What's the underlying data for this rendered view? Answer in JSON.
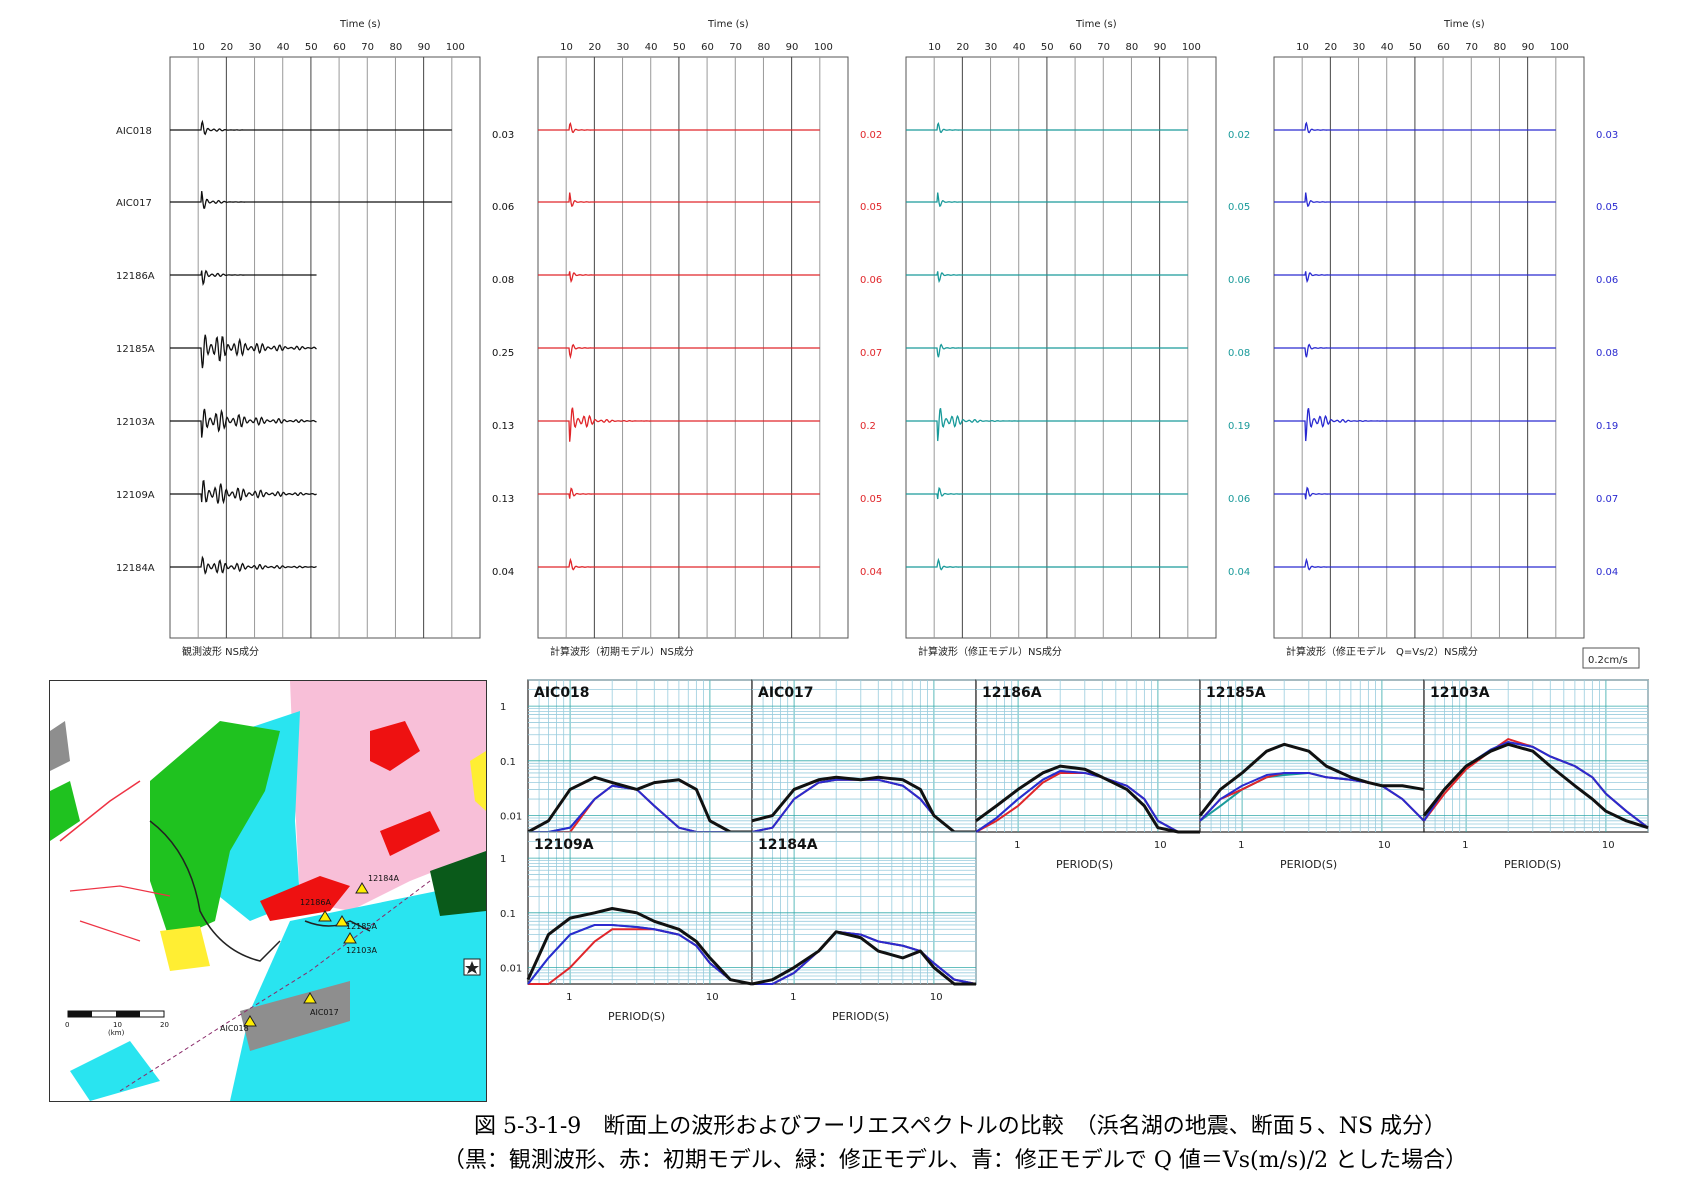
{
  "caption": {
    "line1": "図 5-3-1-9　断面上の波形およびフーリエスペクトルの比較　（浜名湖の地震、断面５、NS 成分）",
    "line2": "（黒：観測波形、赤：初期モデル、緑：修正モデル、青：修正モデルで Q 値＝Vs(m/s)/2 とした場合）"
  },
  "colors": {
    "observed": "#111111",
    "initial": "#e0262a",
    "modified": "#1a9a9a",
    "modified_q": "#2a2ad0"
  },
  "chart_data": [
    {
      "type": "line",
      "title": "Time (s)",
      "x_ticks": [
        "10",
        "20",
        "30",
        "40",
        "50",
        "60",
        "70",
        "80",
        "90",
        "100"
      ],
      "stations": [
        "AIC018",
        "AIC017",
        "12186A",
        "12185A",
        "12103A",
        "12109A",
        "12184A"
      ],
      "scale_label": "0.2cm/s",
      "panels": [
        {
          "label": "観測波形 NS成分",
          "color": "#111111",
          "peaks": [
            "0.03",
            "0.06",
            "0.08",
            "0.25",
            "0.13",
            "0.13",
            "0.04"
          ],
          "duration_s": [
            100,
            100,
            52,
            52,
            52,
            52,
            52
          ]
        },
        {
          "label": "計算波形（初期モデル）NS成分",
          "color": "#e0262a",
          "peaks": [
            "0.02",
            "0.05",
            "0.06",
            "0.07",
            "0.2",
            "0.05",
            "0.04"
          ],
          "duration_s": [
            100,
            100,
            100,
            100,
            100,
            100,
            100
          ]
        },
        {
          "label": "計算波形（修正モデル）NS成分",
          "color": "#1a9a9a",
          "peaks": [
            "0.02",
            "0.05",
            "0.06",
            "0.08",
            "0.19",
            "0.06",
            "0.04"
          ],
          "duration_s": [
            100,
            100,
            100,
            100,
            100,
            100,
            100
          ]
        },
        {
          "label": "計算波形（修正モデル　Q=Vs/2）NS成分",
          "color": "#2a2ad0",
          "peaks": [
            "0.03",
            "0.05",
            "0.06",
            "0.08",
            "0.19",
            "0.07",
            "0.04"
          ],
          "duration_s": [
            100,
            100,
            100,
            100,
            100,
            100,
            100
          ]
        }
      ]
    },
    {
      "type": "line",
      "xlabel": "PERIOD(S)",
      "x_scale": "log",
      "xlim": [
        0.5,
        20
      ],
      "y_scale": "log",
      "ylim": [
        0.005,
        3
      ],
      "x_tick_labels": [
        "1",
        "10"
      ],
      "y_tick_labels": [
        "1",
        "0.1",
        "0.01"
      ],
      "period": [
        0.5,
        0.7,
        1,
        1.5,
        2,
        3,
        4,
        6,
        8,
        10,
        14,
        20
      ],
      "panels": [
        {
          "station": "AIC018",
          "observed": [
            0.005,
            0.008,
            0.03,
            0.05,
            0.04,
            0.03,
            0.04,
            0.045,
            0.03,
            0.008,
            0.005,
            0.005
          ],
          "initial": [
            0.005,
            0.005,
            0.005,
            0.02,
            0.035,
            0.03,
            0.015,
            0.006,
            0.005,
            0.005,
            0.005,
            0.005
          ],
          "modified": [
            0.005,
            0.005,
            0.006,
            0.02,
            0.035,
            0.03,
            0.015,
            0.006,
            0.005,
            0.005,
            0.005,
            0.005
          ],
          "modified_q": [
            0.005,
            0.005,
            0.006,
            0.02,
            0.035,
            0.03,
            0.015,
            0.006,
            0.005,
            0.005,
            0.005,
            0.005
          ]
        },
        {
          "station": "AIC017",
          "observed": [
            0.008,
            0.01,
            0.03,
            0.045,
            0.05,
            0.045,
            0.05,
            0.045,
            0.03,
            0.01,
            0.005,
            0.005
          ],
          "initial": [
            0.005,
            0.006,
            0.02,
            0.04,
            0.045,
            0.045,
            0.045,
            0.035,
            0.02,
            0.01,
            0.005,
            0.005
          ],
          "modified": [
            0.005,
            0.006,
            0.02,
            0.04,
            0.045,
            0.045,
            0.045,
            0.035,
            0.02,
            0.01,
            0.005,
            0.005
          ],
          "modified_q": [
            0.005,
            0.006,
            0.02,
            0.04,
            0.045,
            0.045,
            0.045,
            0.035,
            0.02,
            0.01,
            0.005,
            0.005
          ]
        },
        {
          "station": "12186A",
          "observed": [
            0.008,
            0.015,
            0.03,
            0.06,
            0.08,
            0.07,
            0.05,
            0.03,
            0.015,
            0.006,
            0.005,
            0.005
          ],
          "initial": [
            0.005,
            0.008,
            0.015,
            0.04,
            0.06,
            0.06,
            0.05,
            0.035,
            0.02,
            0.008,
            0.005,
            0.005
          ],
          "modified": [
            0.005,
            0.009,
            0.02,
            0.045,
            0.065,
            0.06,
            0.05,
            0.035,
            0.02,
            0.008,
            0.005,
            0.005
          ],
          "modified_q": [
            0.005,
            0.009,
            0.02,
            0.045,
            0.065,
            0.06,
            0.05,
            0.035,
            0.02,
            0.008,
            0.005,
            0.005
          ]
        },
        {
          "station": "12185A",
          "observed": [
            0.01,
            0.03,
            0.06,
            0.15,
            0.2,
            0.15,
            0.08,
            0.05,
            0.04,
            0.035,
            0.035,
            0.03
          ],
          "initial": [
            0.008,
            0.02,
            0.03,
            0.05,
            0.06,
            0.06,
            0.05,
            0.045,
            0.04,
            0.035,
            0.02,
            0.008
          ],
          "modified": [
            0.008,
            0.015,
            0.03,
            0.05,
            0.055,
            0.06,
            0.05,
            0.045,
            0.04,
            0.035,
            0.02,
            0.008
          ],
          "modified_q": [
            0.008,
            0.02,
            0.035,
            0.055,
            0.06,
            0.06,
            0.05,
            0.045,
            0.04,
            0.035,
            0.02,
            0.008
          ]
        },
        {
          "station": "12103A",
          "observed": [
            0.01,
            0.03,
            0.08,
            0.15,
            0.2,
            0.15,
            0.08,
            0.035,
            0.02,
            0.012,
            0.008,
            0.006
          ],
          "initial": [
            0.008,
            0.025,
            0.07,
            0.15,
            0.25,
            0.18,
            0.12,
            0.08,
            0.05,
            0.025,
            0.012,
            0.006
          ],
          "modified": [
            0.008,
            0.03,
            0.08,
            0.16,
            0.22,
            0.18,
            0.12,
            0.08,
            0.05,
            0.025,
            0.012,
            0.006
          ],
          "modified_q": [
            0.008,
            0.03,
            0.08,
            0.16,
            0.22,
            0.18,
            0.12,
            0.08,
            0.05,
            0.025,
            0.012,
            0.006
          ]
        },
        {
          "station": "12109A",
          "observed": [
            0.006,
            0.04,
            0.08,
            0.1,
            0.12,
            0.1,
            0.07,
            0.05,
            0.03,
            0.015,
            0.006,
            0.005
          ],
          "initial": [
            0.005,
            0.005,
            0.01,
            0.03,
            0.05,
            0.05,
            0.05,
            0.04,
            0.025,
            0.012,
            0.006,
            0.005
          ],
          "modified": [
            0.005,
            0.015,
            0.04,
            0.06,
            0.06,
            0.055,
            0.05,
            0.04,
            0.025,
            0.012,
            0.006,
            0.005
          ],
          "modified_q": [
            0.005,
            0.015,
            0.04,
            0.06,
            0.06,
            0.055,
            0.05,
            0.04,
            0.025,
            0.012,
            0.006,
            0.005
          ]
        },
        {
          "station": "12184A",
          "observed": [
            0.005,
            0.006,
            0.01,
            0.02,
            0.045,
            0.035,
            0.02,
            0.015,
            0.02,
            0.01,
            0.005,
            0.005
          ],
          "initial": [
            0.005,
            0.005,
            0.008,
            0.02,
            0.045,
            0.04,
            0.03,
            0.025,
            0.02,
            0.012,
            0.006,
            0.005
          ],
          "modified": [
            0.005,
            0.005,
            0.008,
            0.02,
            0.045,
            0.04,
            0.03,
            0.025,
            0.02,
            0.012,
            0.006,
            0.005
          ],
          "modified_q": [
            0.005,
            0.005,
            0.008,
            0.02,
            0.045,
            0.04,
            0.03,
            0.025,
            0.02,
            0.012,
            0.006,
            0.005
          ]
        }
      ]
    }
  ],
  "map": {
    "stations": [
      "12184A",
      "12186A",
      "12185A",
      "12103A",
      "AIC017",
      "AIC018"
    ],
    "scale_ticks": [
      "0",
      "10",
      "20"
    ],
    "scale_unit": "(km)"
  }
}
